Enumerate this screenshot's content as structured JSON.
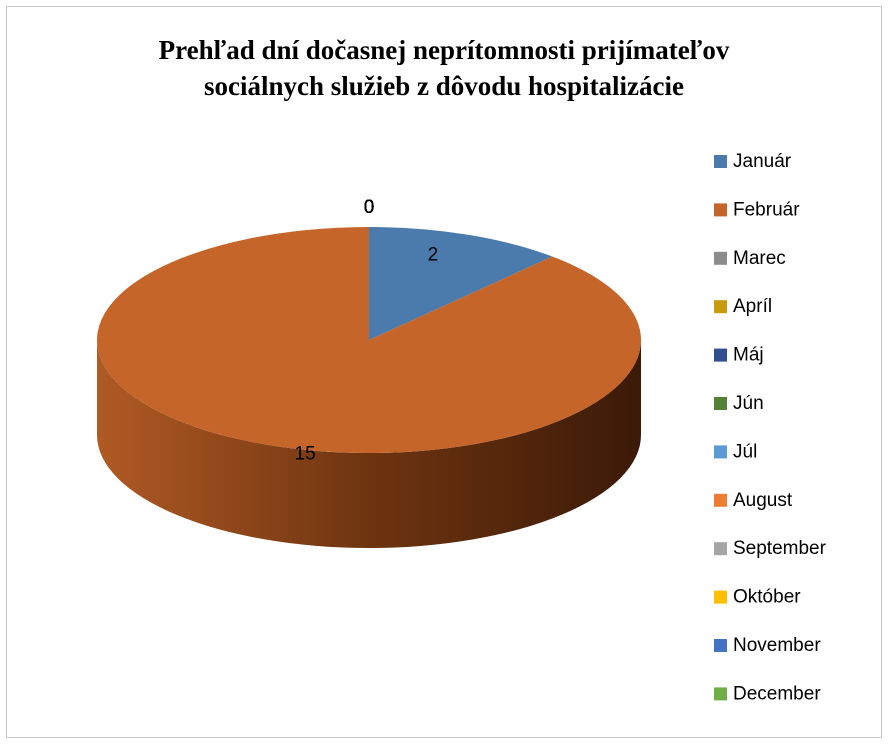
{
  "chart_data": {
    "type": "pie",
    "title": "Prehľad dní dočasnej neprítomnosti prijímateľov sociálnych služieb z dôvodu hospitalizácie",
    "categories": [
      "Január",
      "Február",
      "Marec",
      "Apríl",
      "Máj",
      "Jún",
      "Júl",
      "August",
      "September",
      "Október",
      "November",
      "December"
    ],
    "values": [
      2,
      15,
      0,
      0,
      0,
      0,
      0,
      0,
      0,
      0,
      0,
      0
    ],
    "colors": [
      "#4a7bac",
      "#c5652a",
      "#8c8c8c",
      "#c99a0b",
      "#2f4f8f",
      "#548235",
      "#5b9bd5",
      "#ed7d31",
      "#a5a5a5",
      "#ffc000",
      "#4472c4",
      "#70ad47"
    ],
    "legend": "right"
  }
}
